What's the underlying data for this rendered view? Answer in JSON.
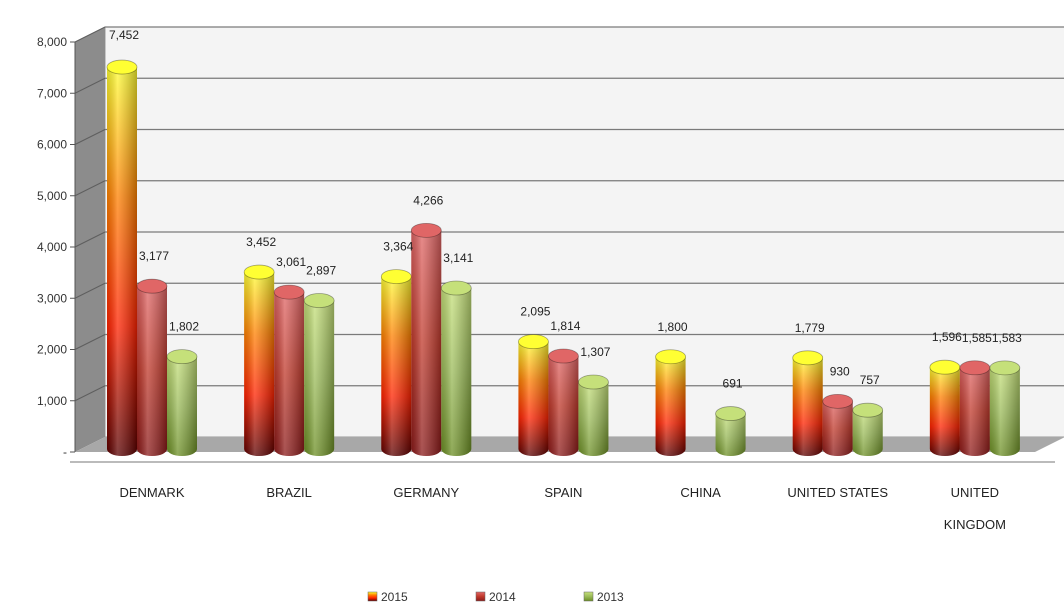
{
  "chart_data": {
    "type": "bar",
    "title": "",
    "xlabel": "",
    "ylabel": "",
    "ylim": [
      0,
      8000
    ],
    "yticks": [
      "-",
      "1,000",
      "2,000",
      "3,000",
      "4,000",
      "5,000",
      "6,000",
      "7,000",
      "8,000"
    ],
    "grid": true,
    "legend_position": "bottom",
    "categories": [
      [
        "DENMARK"
      ],
      [
        "BRAZIL"
      ],
      [
        "GERMANY"
      ],
      [
        "SPAIN"
      ],
      [
        "CHINA"
      ],
      [
        "UNITED STATES"
      ],
      [
        "UNITED",
        "KINGDOM"
      ]
    ],
    "series": [
      {
        "name": "2015",
        "colors": [
          "#ffff33",
          "#ff8000",
          "#ff2200",
          "#5a0000"
        ],
        "values": [
          7452,
          3452,
          3364,
          2095,
          1800,
          1779,
          1596
        ],
        "labels": [
          "7,452",
          "3,452",
          "3,364",
          "2,095",
          "1,800",
          "1,779",
          "1,596"
        ]
      },
      {
        "name": "2014",
        "colors": [
          "#e06666",
          "#c0392b",
          "#8b1a1a"
        ],
        "values": [
          3177,
          3061,
          4266,
          1814,
          null,
          930,
          1585
        ],
        "labels": [
          "3,177",
          "3,061",
          "4,266",
          "1,814",
          "",
          "930",
          "1,585"
        ]
      },
      {
        "name": "2013",
        "colors": [
          "#c5e07a",
          "#9bbb59",
          "#6b8e23"
        ],
        "values": [
          1802,
          2897,
          3141,
          1307,
          691,
          757,
          1583
        ],
        "labels": [
          "1,802",
          "2,897",
          "3,141",
          "1,307",
          "691",
          "757",
          "1,583"
        ]
      }
    ]
  }
}
